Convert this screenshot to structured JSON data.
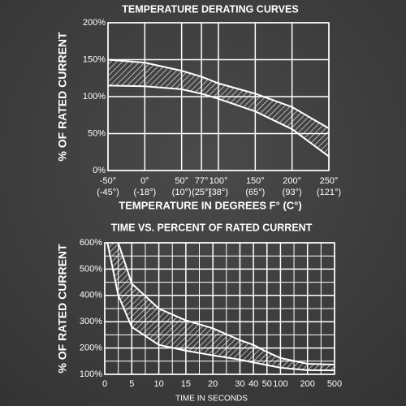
{
  "chart_data": [
    {
      "type": "band",
      "title": "TEMPERATURE DERATING CURVES",
      "ylabel": "% OF RATED CURRENT",
      "xlabel": "TEMPERATURE IN DEGREES F° (C°)",
      "x": [
        -50,
        0,
        50,
        77,
        100,
        150,
        200,
        250
      ],
      "series": [
        {
          "color": "#ffffff",
          "values": [
            150,
            146,
            135,
            127,
            118,
            104,
            86,
            57
          ]
        },
        {
          "color": "#ffffff",
          "values": [
            115,
            114,
            110,
            104,
            97,
            80,
            56,
            19
          ]
        }
      ],
      "fill": "hatch",
      "xlim": [
        -50,
        250
      ],
      "xticks": [
        {
          "value": -50,
          "label": "-50° (-45°)"
        },
        {
          "value": 0,
          "label": "0° (-18°)"
        },
        {
          "value": 50,
          "label": "50° (10°)"
        },
        {
          "value": 77,
          "label": "77° (25°)"
        },
        {
          "value": 100,
          "label": "100° (38°)"
        },
        {
          "value": 150,
          "label": "150° (65°)"
        },
        {
          "value": 200,
          "label": "200° (93°)"
        },
        {
          "value": 250,
          "label": "250° (121°)"
        }
      ],
      "ylim": [
        0,
        200
      ],
      "yticks": [
        {
          "value": 0,
          "label": "0%"
        },
        {
          "value": 50,
          "label": "50%"
        },
        {
          "value": 100,
          "label": "100%"
        },
        {
          "value": 150,
          "label": "150%"
        },
        {
          "value": 200,
          "label": "200%"
        }
      ],
      "grid": true
    },
    {
      "type": "band",
      "title": "TIME VS. PERCENT OF RATED CURRENT",
      "ylabel": "% OF RATED CURRENT",
      "xlabel": "TIME IN SECONDS",
      "series": [
        {
          "color": "#ffffff",
          "x": [
            2.5,
            5,
            10,
            15,
            20,
            30,
            40,
            50,
            100,
            200,
            500
          ],
          "values": [
            600,
            445,
            350,
            305,
            275,
            230,
            212,
            185,
            162,
            140,
            137
          ]
        },
        {
          "color": "#ffffff",
          "x": [
            0.5,
            2.5,
            5,
            10,
            15,
            20,
            30,
            40,
            50,
            100,
            200,
            500
          ],
          "values": [
            600,
            400,
            280,
            212,
            190,
            172,
            156,
            145,
            135,
            125,
            116,
            115
          ]
        }
      ],
      "fill": "hatch",
      "xlim": [
        0,
        500
      ],
      "xticks": [
        0,
        5,
        10,
        15,
        20,
        30,
        40,
        50,
        100,
        200,
        500
      ],
      "ylim": [
        100,
        600
      ],
      "yticks": [
        {
          "value": 100,
          "label": "100%"
        },
        {
          "value": 200,
          "label": "200%"
        },
        {
          "value": 300,
          "label": "300%"
        },
        {
          "value": 400,
          "label": "400%"
        },
        {
          "value": 500,
          "label": "500%"
        },
        {
          "value": 600,
          "label": "600%"
        }
      ],
      "grid": true
    }
  ]
}
